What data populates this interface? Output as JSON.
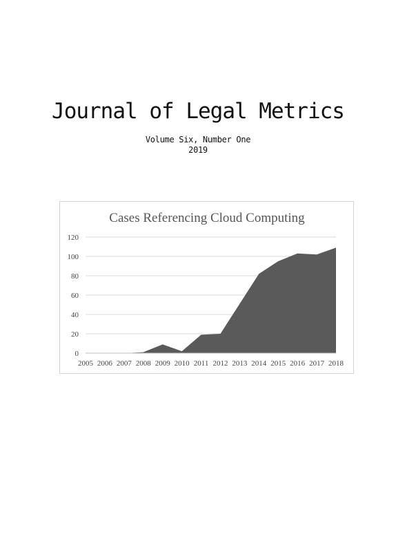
{
  "journal": {
    "title": "Journal of Legal Metrics",
    "volume": "Volume Six, Number One",
    "year": "2019"
  },
  "chart_data": {
    "type": "area",
    "title": "Cases Referencing Cloud Computing",
    "xlabel": "",
    "ylabel": "",
    "x": [
      "2005",
      "2006",
      "2007",
      "2008",
      "2009",
      "2010",
      "2011",
      "2012",
      "2013",
      "2014",
      "2015",
      "2016",
      "2017",
      "2018"
    ],
    "series": [
      {
        "values": [
          0,
          0,
          0,
          1,
          9,
          2,
          19,
          20,
          51,
          82,
          95,
          103,
          102,
          109
        ]
      }
    ],
    "ylim": [
      0,
      120
    ],
    "yticks": [
      0,
      20,
      40,
      60,
      80,
      100,
      120
    ],
    "grid": true,
    "legend": "none",
    "fill_color": "#5a5a5a"
  }
}
